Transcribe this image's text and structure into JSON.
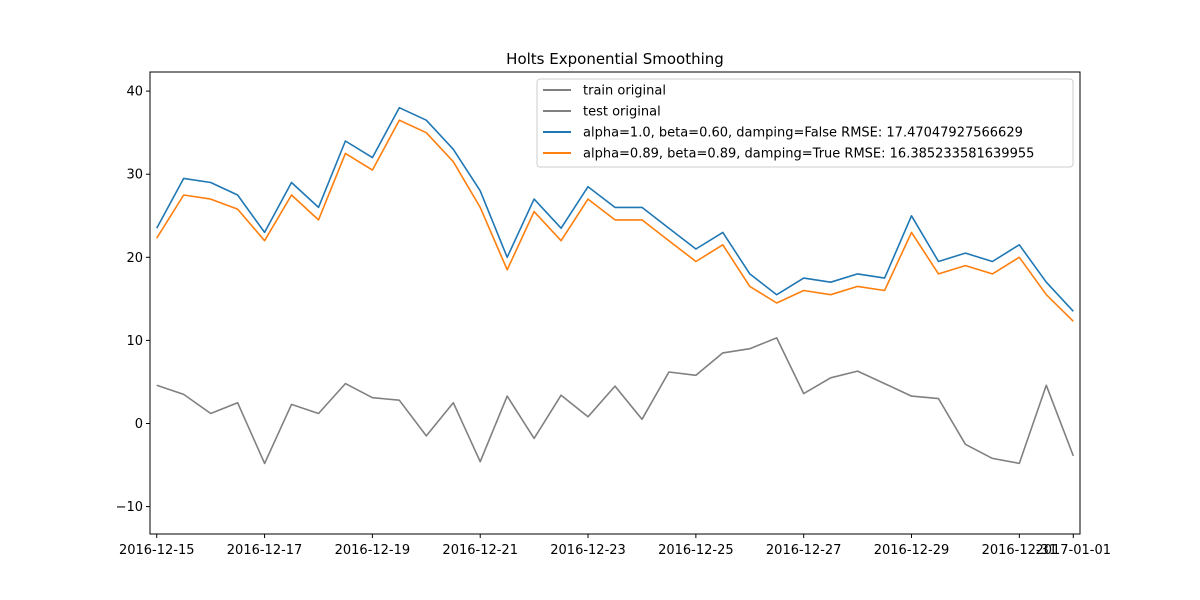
{
  "chart_data": {
    "type": "line",
    "title": "Holts Exponential Smoothing",
    "xlabel": "",
    "ylabel": "",
    "xlim": [
      "2016-12-14T21:00",
      "2017-01-01T03:00"
    ],
    "ylim": [
      -13.3,
      42.3
    ],
    "x_ticks": [
      "2016-12-15",
      "2016-12-17",
      "2016-12-19",
      "2016-12-21",
      "2016-12-23",
      "2016-12-25",
      "2016-12-27",
      "2016-12-29",
      "2016-12-31",
      "2017-01-01"
    ],
    "y_ticks": [
      -10,
      0,
      10,
      20,
      30,
      40
    ],
    "grid": false,
    "legend_position": "upper-right",
    "series": [
      {
        "name": "train original",
        "color": "#808080",
        "x": [
          "2016-12-15T00:00",
          "2016-12-15T12:00",
          "2016-12-16T00:00",
          "2016-12-16T12:00",
          "2016-12-17T00:00",
          "2016-12-17T12:00",
          "2016-12-18T00:00",
          "2016-12-18T12:00",
          "2016-12-19T00:00",
          "2016-12-19T12:00",
          "2016-12-20T00:00",
          "2016-12-20T12:00",
          "2016-12-21T00:00",
          "2016-12-21T12:00",
          "2016-12-22T00:00",
          "2016-12-22T12:00",
          "2016-12-23T00:00",
          "2016-12-23T12:00",
          "2016-12-24T00:00",
          "2016-12-24T12:00",
          "2016-12-25T00:00",
          "2016-12-25T12:00",
          "2016-12-26T00:00",
          "2016-12-26T12:00",
          "2016-12-27T00:00",
          "2016-12-27T12:00",
          "2016-12-28T00:00",
          "2016-12-28T12:00",
          "2016-12-29T00:00",
          "2016-12-29T12:00",
          "2016-12-30T00:00",
          "2016-12-30T12:00",
          "2016-12-31T00:00",
          "2016-12-31T12:00",
          "2017-01-01T00:00"
        ],
        "values": [
          4.6,
          3.5,
          1.2,
          2.5,
          -4.8,
          2.3,
          1.2,
          4.8,
          3.1,
          2.8,
          -1.5,
          2.5,
          -4.6,
          3.3,
          -1.8,
          3.4,
          0.8,
          4.5,
          0.5,
          6.2,
          5.8,
          8.5,
          9.0,
          10.3,
          3.6,
          5.5,
          6.3,
          4.8,
          3.3,
          3.0,
          -2.5,
          -4.2,
          -4.8,
          4.6,
          -3.9
        ]
      },
      {
        "name": "test original",
        "color": "#808080",
        "x": [],
        "values": []
      },
      {
        "name": "alpha=1.0, beta=0.60, damping=False RMSE: 17.47047927566629",
        "color": "#1f77b4",
        "x": [
          "2016-12-15T00:00",
          "2016-12-15T12:00",
          "2016-12-16T00:00",
          "2016-12-16T12:00",
          "2016-12-17T00:00",
          "2016-12-17T12:00",
          "2016-12-18T00:00",
          "2016-12-18T12:00",
          "2016-12-19T00:00",
          "2016-12-19T12:00",
          "2016-12-20T00:00",
          "2016-12-20T12:00",
          "2016-12-21T00:00",
          "2016-12-21T12:00",
          "2016-12-22T00:00",
          "2016-12-22T12:00",
          "2016-12-23T00:00",
          "2016-12-23T12:00",
          "2016-12-24T00:00",
          "2016-12-24T12:00",
          "2016-12-25T00:00",
          "2016-12-25T12:00",
          "2016-12-26T00:00",
          "2016-12-26T12:00",
          "2016-12-27T00:00",
          "2016-12-27T12:00",
          "2016-12-28T00:00",
          "2016-12-28T12:00",
          "2016-12-29T00:00",
          "2016-12-29T12:00",
          "2016-12-30T00:00",
          "2016-12-30T12:00",
          "2016-12-31T00:00",
          "2016-12-31T12:00",
          "2017-01-01T00:00"
        ],
        "values": [
          23.5,
          29.5,
          29.0,
          27.5,
          23.0,
          29.0,
          26.0,
          34.0,
          32.0,
          38.0,
          36.5,
          33.0,
          28.0,
          20.0,
          27.0,
          23.5,
          28.5,
          26.0,
          26.0,
          23.5,
          21.0,
          23.0,
          18.0,
          15.5,
          17.5,
          17.0,
          18.0,
          17.5,
          25.0,
          19.5,
          20.5,
          19.5,
          21.5,
          17.0,
          13.5
        ]
      },
      {
        "name": "alpha=0.89, beta=0.89, damping=True RMSE: 16.385233581639955",
        "color": "#ff7f0e",
        "x": [
          "2016-12-15T00:00",
          "2016-12-15T12:00",
          "2016-12-16T00:00",
          "2016-12-16T12:00",
          "2016-12-17T00:00",
          "2016-12-17T12:00",
          "2016-12-18T00:00",
          "2016-12-18T12:00",
          "2016-12-19T00:00",
          "2016-12-19T12:00",
          "2016-12-20T00:00",
          "2016-12-20T12:00",
          "2016-12-21T00:00",
          "2016-12-21T12:00",
          "2016-12-22T00:00",
          "2016-12-22T12:00",
          "2016-12-23T00:00",
          "2016-12-23T12:00",
          "2016-12-24T00:00",
          "2016-12-24T12:00",
          "2016-12-25T00:00",
          "2016-12-25T12:00",
          "2016-12-26T00:00",
          "2016-12-26T12:00",
          "2016-12-27T00:00",
          "2016-12-27T12:00",
          "2016-12-28T00:00",
          "2016-12-28T12:00",
          "2016-12-29T00:00",
          "2016-12-29T12:00",
          "2016-12-30T00:00",
          "2016-12-30T12:00",
          "2016-12-31T00:00",
          "2016-12-31T12:00",
          "2017-01-01T00:00"
        ],
        "values": [
          22.3,
          27.5,
          27.0,
          25.8,
          22.0,
          27.5,
          24.5,
          32.5,
          30.5,
          36.5,
          35.0,
          31.5,
          26.0,
          18.5,
          25.5,
          22.0,
          27.0,
          24.5,
          24.5,
          22.0,
          19.5,
          21.5,
          16.5,
          14.5,
          16.0,
          15.5,
          16.5,
          16.0,
          23.0,
          18.0,
          19.0,
          18.0,
          20.0,
          15.5,
          12.3
        ]
      }
    ]
  }
}
